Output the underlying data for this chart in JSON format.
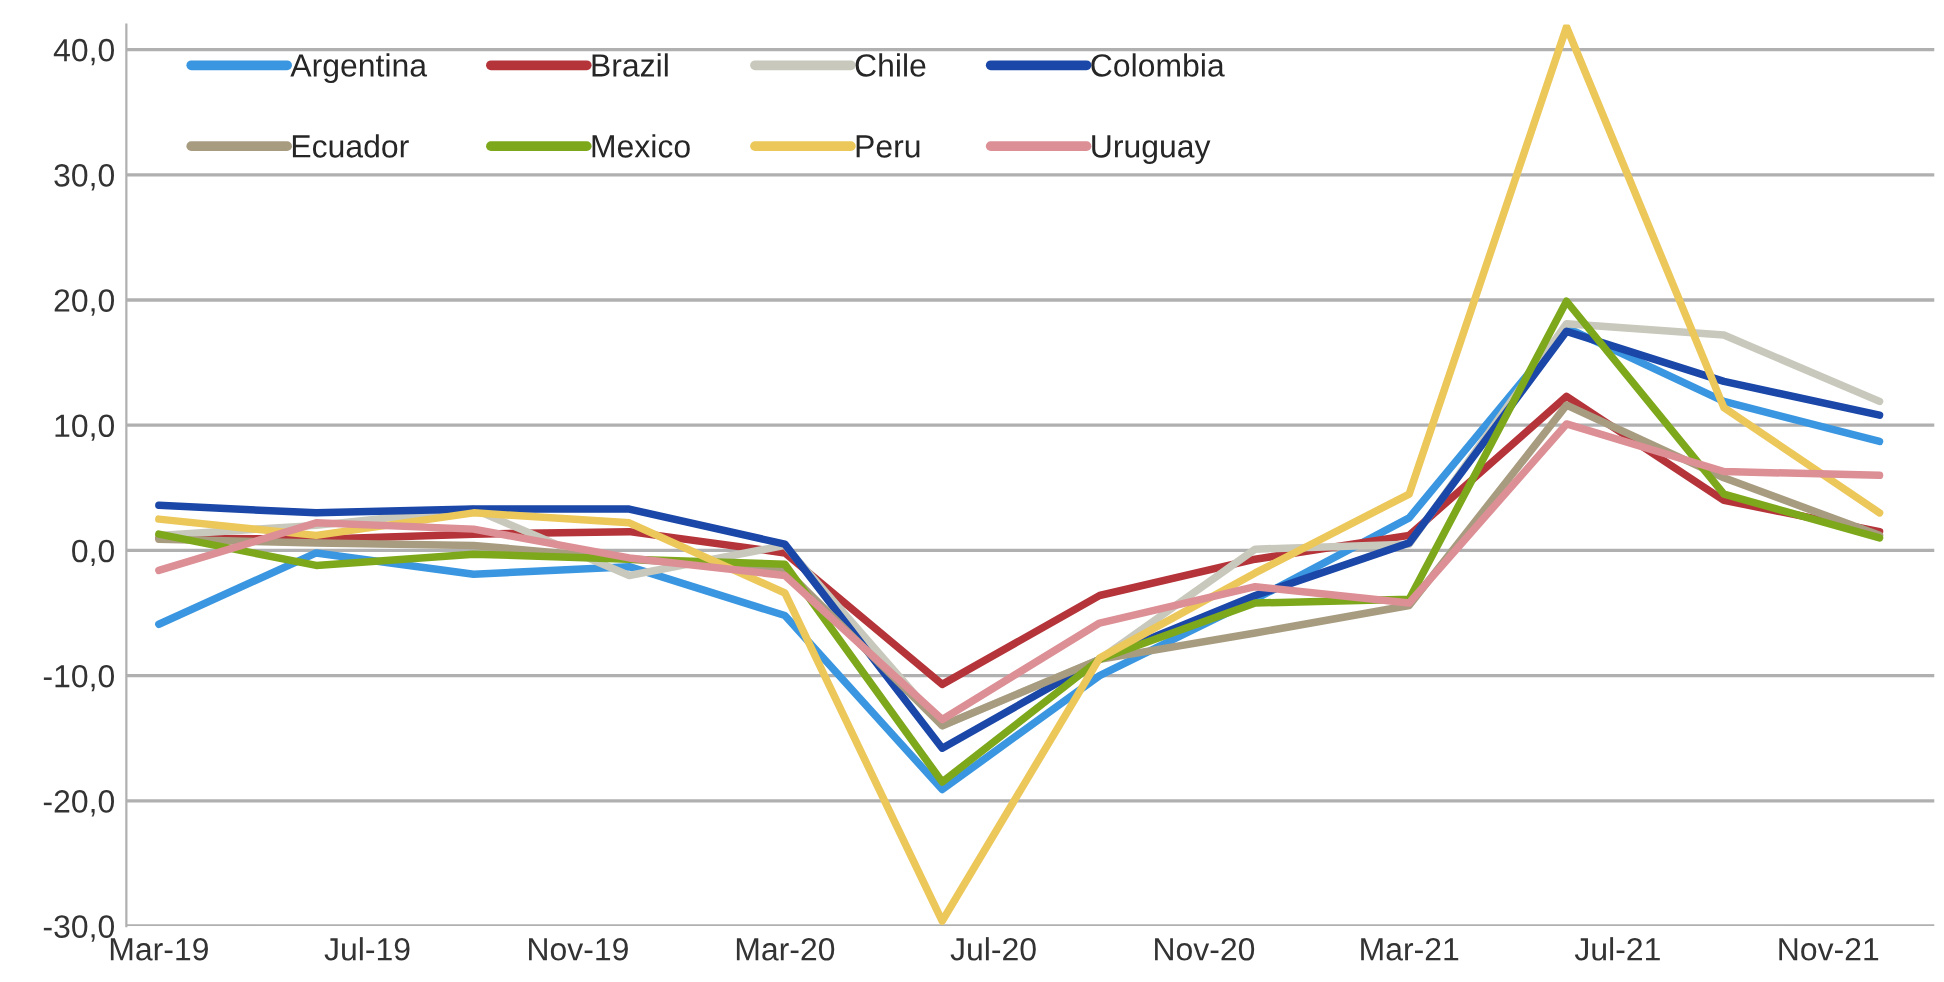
{
  "chart_data": {
    "type": "line",
    "x": [
      "2019-03",
      "2019-06",
      "2019-09",
      "2019-12",
      "2020-03",
      "2020-06",
      "2020-09",
      "2020-12",
      "2021-03",
      "2021-06",
      "2021-09",
      "2021-12"
    ],
    "series": [
      {
        "name": "Argentina",
        "color": "#3a96e0",
        "values": [
          -5.9,
          -0.2,
          -1.9,
          -1.3,
          -5.2,
          -19.1,
          -10.0,
          -3.9,
          2.6,
          17.8,
          11.9,
          8.7
        ]
      },
      {
        "name": "Brazil",
        "color": "#b5343a",
        "values": [
          1.0,
          0.9,
          1.3,
          1.5,
          -0.2,
          -10.7,
          -3.6,
          -0.7,
          1.2,
          12.3,
          4.0,
          1.5
        ]
      },
      {
        "name": "Chile",
        "color": "#c8c8bc",
        "values": [
          1.2,
          2.0,
          3.3,
          -2.0,
          0.4,
          -14.0,
          -8.7,
          0.1,
          0.5,
          18.1,
          17.2,
          11.9
        ]
      },
      {
        "name": "Colombia",
        "color": "#1a47a8",
        "values": [
          3.6,
          3.0,
          3.3,
          3.3,
          0.5,
          -15.8,
          -8.7,
          -3.6,
          0.6,
          17.5,
          13.5,
          10.8
        ]
      },
      {
        "name": "Ecuador",
        "color": "#a89c80",
        "values": [
          0.9,
          0.6,
          0.4,
          -0.7,
          -1.5,
          -14.0,
          -8.7,
          -6.6,
          -4.4,
          11.6,
          5.8,
          1.2
        ]
      },
      {
        "name": "Mexico",
        "color": "#7ea81c",
        "values": [
          1.3,
          -1.2,
          -0.3,
          -0.7,
          -1.1,
          -18.5,
          -8.7,
          -4.2,
          -3.9,
          19.9,
          4.5,
          1.0
        ]
      },
      {
        "name": "Peru",
        "color": "#ecc75a",
        "values": [
          2.5,
          1.2,
          3.0,
          2.2,
          -3.4,
          -29.6,
          -8.6,
          -1.8,
          4.5,
          41.8,
          11.4,
          3.0
        ]
      },
      {
        "name": "Uruguay",
        "color": "#dc8f95",
        "values": [
          -1.6,
          2.2,
          1.7,
          -0.6,
          -2.0,
          -13.5,
          -5.8,
          -2.9,
          -4.2,
          10.1,
          6.3,
          6.0
        ]
      }
    ],
    "xlim": [
      "2019-02-10",
      "2022-01-02"
    ],
    "xticks": [
      {
        "value": "2019-03",
        "label": "Mar-19"
      },
      {
        "value": "2019-07",
        "label": "Jul-19"
      },
      {
        "value": "2019-11",
        "label": "Nov-19"
      },
      {
        "value": "2020-03",
        "label": "Mar-20"
      },
      {
        "value": "2020-07",
        "label": "Jul-20"
      },
      {
        "value": "2020-11",
        "label": "Nov-20"
      },
      {
        "value": "2021-03",
        "label": "Mar-21"
      },
      {
        "value": "2021-07",
        "label": "Jul-21"
      },
      {
        "value": "2021-11",
        "label": "Nov-21"
      }
    ],
    "ylim": [
      -30,
      42
    ],
    "yticks": [
      {
        "value": -30,
        "label": "-30,0"
      },
      {
        "value": -20,
        "label": "-20,0"
      },
      {
        "value": -10,
        "label": "-10,0"
      },
      {
        "value": 0,
        "label": "0,0"
      },
      {
        "value": 10,
        "label": "10,0"
      },
      {
        "value": 20,
        "label": "20,0"
      },
      {
        "value": 30,
        "label": "30,0"
      },
      {
        "value": 40,
        "label": "40,0"
      }
    ],
    "grid": "y",
    "legend": "top left",
    "marker": "none",
    "line_style": "solid"
  }
}
